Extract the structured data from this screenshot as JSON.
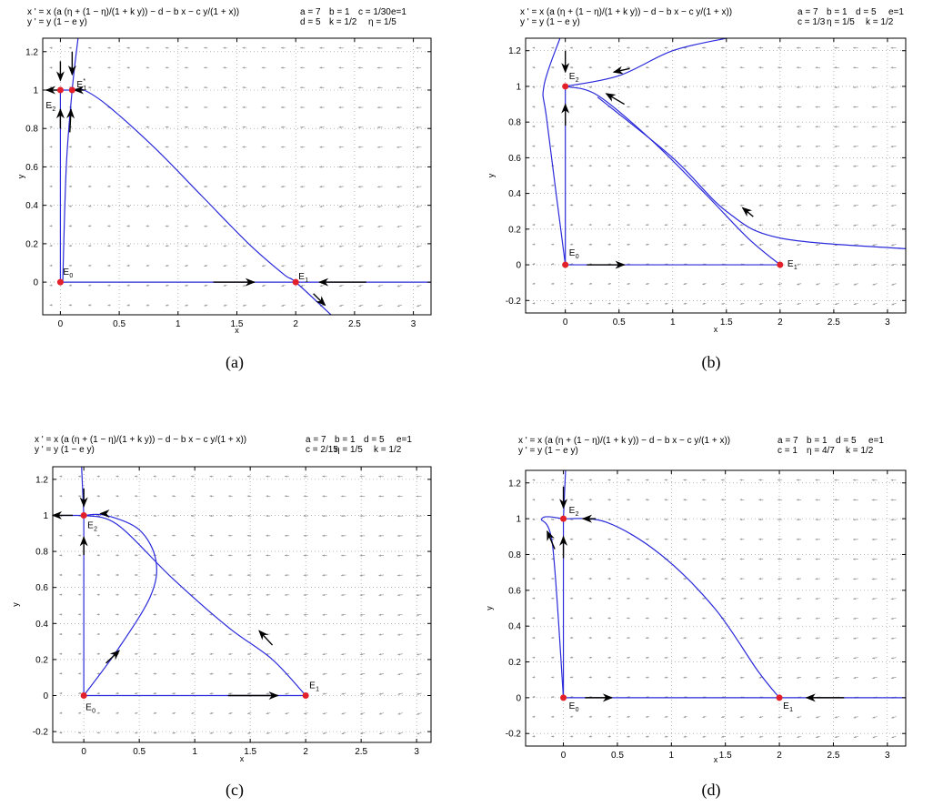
{
  "panels": [
    {
      "caption": "(a)",
      "eq_x": "x ' = x (a (η + (1 − η)/(1 + k y)) − d − b x − c y/(1 + x))",
      "eq_y": "y ' = y (1 − e y)",
      "params_row1": [
        "a = 7",
        "b = 1",
        "c = 1/30",
        "e=1"
      ],
      "params_row2": [
        "d = 5",
        "k = 1/2",
        "η = 1/5"
      ],
      "xlabel": "x",
      "ylabel": "y",
      "xlim": [
        -0.15,
        3.15
      ],
      "ylim": [
        -0.17,
        1.27
      ],
      "xticks": [
        "0",
        "0.5",
        "1",
        "1.5",
        "2",
        "2.5",
        "3"
      ],
      "yticks": [
        "0",
        "0.2",
        "0.4",
        "0.6",
        "0.8",
        "1",
        "1.2"
      ],
      "points": [
        {
          "label": "E",
          "sub": "0",
          "x": 0,
          "y": 0
        },
        {
          "label": "E",
          "sub": "1",
          "x": 2,
          "y": 0
        },
        {
          "label": "E",
          "sub": "2",
          "x": 0,
          "y": 1
        },
        {
          "label": "E",
          "sub": "1",
          "sup": "*",
          "x": 0.1,
          "y": 1
        }
      ]
    },
    {
      "caption": "(b)",
      "eq_x": "x ' = x (a (η + (1 − η)/(1 + k y)) − d − b x − c y/(1 + x))",
      "eq_y": "y ' = y (1 − e y)",
      "params_row1": [
        "a = 7",
        "b = 1",
        "d = 5",
        "e=1"
      ],
      "params_row2": [
        "c = 1/3",
        "η = 1/5",
        "k = 1/2"
      ],
      "xlabel": "x",
      "ylabel": "y",
      "xlim": [
        -0.37,
        3.17
      ],
      "ylim": [
        -0.27,
        1.27
      ],
      "xticks": [
        "0",
        "0.5",
        "1",
        "1.5",
        "2",
        "2.5",
        "3"
      ],
      "yticks": [
        "-0.2",
        "0",
        "0.2",
        "0.4",
        "0.6",
        "0.8",
        "1",
        "1.2"
      ],
      "points": [
        {
          "label": "E",
          "sub": "0",
          "x": 0,
          "y": 0
        },
        {
          "label": "E",
          "sub": "1",
          "x": 2,
          "y": 0
        },
        {
          "label": "E",
          "sub": "2",
          "x": 0,
          "y": 1
        }
      ]
    },
    {
      "caption": "(c)",
      "eq_x": "x ' = x (a (η + (1 − η)/(1 + k y)) − d − b x − c y/(1 + x))",
      "eq_y": "y ' = y (1 − e y)",
      "params_row1": [
        "a = 7",
        "b = 1",
        "d = 5",
        "e=1"
      ],
      "params_row2": [
        "c = 2/15",
        "η = 1/5",
        "k = 1/2"
      ],
      "xlabel": "x",
      "ylabel": "y",
      "xlim": [
        -0.28,
        3.13
      ],
      "ylim": [
        -0.26,
        1.27
      ],
      "xticks": [
        "0",
        "0.5",
        "1",
        "1.5",
        "2",
        "2.5",
        "3"
      ],
      "yticks": [
        "-0.2",
        "0",
        "0.2",
        "0.4",
        "0.6",
        "0.8",
        "1",
        "1.2"
      ],
      "points": [
        {
          "label": "E",
          "sub": "0",
          "x": 0,
          "y": 0
        },
        {
          "label": "E",
          "sub": "1",
          "x": 2,
          "y": 0
        },
        {
          "label": "E",
          "sub": "2",
          "x": 0,
          "y": 1
        }
      ]
    },
    {
      "caption": "(d)",
      "eq_x": "x ' = x (a (η + (1 − η)/(1 + k y)) − d − b x − c y/(1 + x))",
      "eq_y": "y ' = y (1 − e y)",
      "params_row1": [
        "a = 7",
        "b = 1",
        "d = 5",
        "e=1"
      ],
      "params_row2": [
        "c = 1",
        "η = 4/7",
        "k = 1/2"
      ],
      "xlabel": "x",
      "ylabel": "y",
      "xlim": [
        -0.35,
        3.17
      ],
      "ylim": [
        -0.27,
        1.27
      ],
      "xticks": [
        "0",
        "0.5",
        "1",
        "1.5",
        "2",
        "2.5",
        "3"
      ],
      "yticks": [
        "-0.2",
        "0",
        "0.2",
        "0.4",
        "0.6",
        "0.8",
        "1",
        "1.2"
      ],
      "points": [
        {
          "label": "E",
          "sub": "0",
          "x": 0,
          "y": 0
        },
        {
          "label": "E",
          "sub": "1",
          "x": 2,
          "y": 0
        },
        {
          "label": "E",
          "sub": "2",
          "x": 0,
          "y": 1
        }
      ]
    }
  ],
  "chart_data": [
    {
      "type": "line",
      "title": "",
      "xlabel": "x",
      "ylabel": "y",
      "xlim": [
        -0.15,
        3.15
      ],
      "ylim": [
        -0.17,
        1.27
      ],
      "grid": "dotted",
      "series": [
        {
          "values_xy": [
            [
              0,
              0
            ],
            [
              0,
              1
            ]
          ]
        },
        {
          "values_xy": [
            [
              0,
              0
            ],
            [
              3.15,
              0
            ]
          ]
        },
        {
          "values_xy": [
            [
              0.1,
              1
            ],
            [
              0.2,
              1
            ],
            [
              0.4,
              0.92
            ],
            [
              0.8,
              0.7
            ],
            [
              1.2,
              0.45
            ],
            [
              1.6,
              0.2
            ],
            [
              1.9,
              0.04
            ],
            [
              2,
              0
            ],
            [
              2.3,
              -0.17
            ]
          ]
        },
        {
          "values_xy": [
            [
              0.02,
              0
            ],
            [
              0.05,
              0.6
            ],
            [
              0.1,
              1
            ],
            [
              0.15,
              1.27
            ]
          ]
        },
        {
          "values_xy": [
            [
              0,
              1
            ],
            [
              0.1,
              1
            ]
          ]
        }
      ],
      "fixed_points": [
        [
          0,
          0
        ],
        [
          2,
          0
        ],
        [
          0,
          1
        ],
        [
          0.1,
          1
        ]
      ]
    },
    {
      "type": "line",
      "title": "",
      "xlabel": "x",
      "ylabel": "y",
      "xlim": [
        -0.37,
        3.17
      ],
      "ylim": [
        -0.27,
        1.27
      ],
      "grid": "dotted",
      "series": [
        {
          "values_xy": [
            [
              0,
              0
            ],
            [
              0,
              1
            ]
          ]
        },
        {
          "values_xy": [
            [
              0,
              0
            ],
            [
              2,
              0
            ]
          ]
        },
        {
          "values_xy": [
            [
              0,
              1
            ],
            [
              0.3,
              0.95
            ],
            [
              0.8,
              0.7
            ],
            [
              1.3,
              0.4
            ],
            [
              1.7,
              0.15
            ],
            [
              2,
              0
            ]
          ]
        },
        {
          "values_xy": [
            [
              0,
              1
            ],
            [
              0.5,
              1.06
            ],
            [
              1,
              1.2
            ],
            [
              1.5,
              1.27
            ]
          ]
        },
        {
          "values_xy": [
            [
              -0.05,
              1.27
            ],
            [
              -0.2,
              1
            ],
            [
              -0.17,
              0.8
            ],
            [
              0,
              0
            ]
          ]
        },
        {
          "values_xy": [
            [
              0.3,
              0.94
            ],
            [
              1,
              0.6
            ],
            [
              1.5,
              0.3
            ],
            [
              2,
              0.15
            ],
            [
              3.17,
              0.09
            ]
          ]
        }
      ],
      "fixed_points": [
        [
          0,
          0
        ],
        [
          2,
          0
        ],
        [
          0,
          1
        ]
      ]
    },
    {
      "type": "line",
      "title": "",
      "xlabel": "x",
      "ylabel": "y",
      "xlim": [
        -0.28,
        3.13
      ],
      "ylim": [
        -0.26,
        1.27
      ],
      "grid": "dotted",
      "series": [
        {
          "values_xy": [
            [
              0,
              0
            ],
            [
              0,
              1
            ]
          ]
        },
        {
          "values_xy": [
            [
              0,
              0
            ],
            [
              2,
              0
            ]
          ]
        },
        {
          "values_xy": [
            [
              -0.28,
              1
            ],
            [
              0,
              1
            ]
          ]
        },
        {
          "values_xy": [
            [
              -0.02,
              1.27
            ],
            [
              0,
              1
            ]
          ]
        },
        {
          "values_xy": [
            [
              0,
              1
            ],
            [
              0.3,
              0.95
            ],
            [
              0.8,
              0.65
            ],
            [
              1.3,
              0.38
            ],
            [
              1.7,
              0.2
            ],
            [
              2,
              0
            ]
          ]
        },
        {
          "values_xy": [
            [
              0,
              0
            ],
            [
              0.3,
              0.25
            ],
            [
              0.6,
              0.55
            ],
            [
              0.65,
              0.75
            ],
            [
              0.5,
              0.92
            ],
            [
              0.2,
              1
            ],
            [
              0,
              1
            ]
          ]
        }
      ],
      "fixed_points": [
        [
          0,
          0
        ],
        [
          2,
          0
        ],
        [
          0,
          1
        ]
      ]
    },
    {
      "type": "line",
      "title": "",
      "xlabel": "x",
      "ylabel": "y",
      "xlim": [
        -0.35,
        3.17
      ],
      "ylim": [
        -0.27,
        1.27
      ],
      "grid": "dotted",
      "series": [
        {
          "values_xy": [
            [
              0,
              0
            ],
            [
              0,
              1
            ]
          ]
        },
        {
          "values_xy": [
            [
              0,
              0
            ],
            [
              3.17,
              0
            ]
          ]
        },
        {
          "values_xy": [
            [
              0,
              1
            ],
            [
              0.4,
              0.98
            ],
            [
              0.9,
              0.8
            ],
            [
              1.4,
              0.5
            ],
            [
              1.8,
              0.15
            ],
            [
              2,
              0
            ]
          ]
        },
        {
          "values_xy": [
            [
              0,
              0
            ],
            [
              -0.1,
              0.85
            ],
            [
              -0.2,
              1
            ],
            [
              0,
              1
            ]
          ]
        },
        {
          "values_xy": [
            [
              0.02,
              1.27
            ],
            [
              0,
              1
            ]
          ]
        }
      ],
      "fixed_points": [
        [
          0,
          0
        ],
        [
          2,
          0
        ],
        [
          0,
          1
        ]
      ]
    }
  ],
  "colors": {
    "curve": "#2a2adb",
    "point": "#e3202a",
    "arrow": "#000000",
    "field": "#9a9a9a",
    "grid": "#8c8c8c"
  }
}
